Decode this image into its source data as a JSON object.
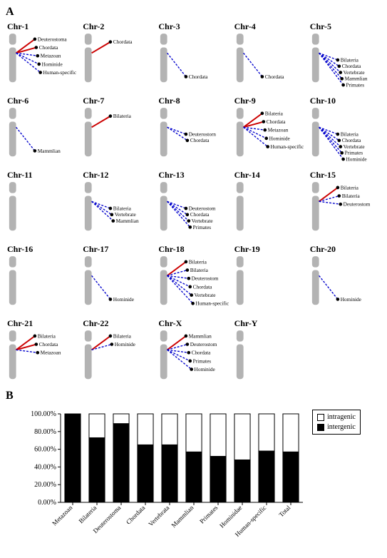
{
  "panelA": {
    "label": "A",
    "chromo_color": "#b3b3b3",
    "solid_color": "#cc0000",
    "dashed_color": "#0000cc",
    "dot_color": "#000000",
    "label_color": "#000000",
    "title_fontsize": 12,
    "label_fontsize": 7.5,
    "chromosomes": [
      {
        "name": "Chr-1",
        "solid": [
          "Deuterostoma",
          "Chordata"
        ],
        "dashed": [
          "Metazoan",
          "Hominide",
          "Human-specific"
        ]
      },
      {
        "name": "Chr-2",
        "solid": [
          "Chordata"
        ],
        "dashed": []
      },
      {
        "name": "Chr-3",
        "solid": [],
        "dashed": [
          "Chordata"
        ]
      },
      {
        "name": "Chr-4",
        "solid": [],
        "dashed": [
          "Chordata"
        ]
      },
      {
        "name": "Chr-5",
        "solid": [],
        "dashed": [
          "Bilateria",
          "Chordata",
          "Vertebrate",
          "Mammlian",
          "Primates"
        ]
      },
      {
        "name": "Chr-6",
        "solid": [],
        "dashed": [
          "Mammlian"
        ]
      },
      {
        "name": "Chr-7",
        "solid": [
          "Bilateria"
        ],
        "dashed": []
      },
      {
        "name": "Chr-8",
        "solid": [],
        "dashed": [
          "Deuterostorn",
          "Chordata"
        ]
      },
      {
        "name": "Chr-9",
        "solid": [
          "Bilateria",
          "Chordata"
        ],
        "dashed": [
          "Metazoan",
          "Hominide",
          "Human-specific"
        ]
      },
      {
        "name": "Chr-10",
        "solid": [],
        "dashed": [
          "Bilateria",
          "Chordata",
          "Vertebrate",
          "Primates",
          "Hominide"
        ]
      },
      {
        "name": "Chr-11",
        "solid": [],
        "dashed": []
      },
      {
        "name": "Chr-12",
        "solid": [],
        "dashed": [
          "Bilateria",
          "Vertebrate",
          "Mammlian"
        ]
      },
      {
        "name": "Chr-13",
        "solid": [],
        "dashed": [
          "Deuterostom",
          "Chordata",
          "Vertebrate",
          "Primates"
        ]
      },
      {
        "name": "Chr-14",
        "solid": [],
        "dashed": []
      },
      {
        "name": "Chr-15",
        "solid": [
          "Bilateria"
        ],
        "dashed": [
          "Bilateria",
          "Deuterostom"
        ]
      },
      {
        "name": "Chr-16",
        "solid": [],
        "dashed": []
      },
      {
        "name": "Chr-17",
        "solid": [],
        "dashed": [
          "Hominide"
        ]
      },
      {
        "name": "Chr-18",
        "solid": [
          "Bilateria"
        ],
        "dashed": [
          "Bilateria",
          "Deuterostom",
          "Chordata",
          "Vertebrate",
          "Human-specific"
        ]
      },
      {
        "name": "Chr-19",
        "solid": [],
        "dashed": []
      },
      {
        "name": "Chr-20",
        "solid": [],
        "dashed": [
          "Hominide"
        ]
      },
      {
        "name": "Chr-21",
        "solid": [
          "Bilateria",
          "Chordata"
        ],
        "dashed": [
          "Metazoan"
        ]
      },
      {
        "name": "Chr-22",
        "solid": [
          "Bilateria"
        ],
        "dashed": [
          "Hominide"
        ]
      },
      {
        "name": "Chr-X",
        "solid": [
          "Mammlian"
        ],
        "dashed": [
          "Deuterostom",
          "Chordata",
          "Primates",
          "Hominide"
        ]
      },
      {
        "name": "Chr-Y",
        "solid": [],
        "dashed": []
      }
    ]
  },
  "panelB": {
    "label": "B",
    "type": "stacked-bar",
    "categories": [
      "Metazoan",
      "Bilateria",
      "Deuterostoma",
      "Chordata",
      "Vertebrata",
      "Mammlian",
      "Primates",
      "Hominidae",
      "Human-specific",
      "Total"
    ],
    "intergenic_pct": [
      100,
      73,
      89,
      65,
      65,
      57,
      52,
      48,
      58,
      57
    ],
    "legend": {
      "intragenic": "intragenic",
      "intergenic": "intergenic"
    },
    "colors": {
      "intragenic": "#ffffff",
      "intergenic": "#000000",
      "border": "#000000",
      "axis": "#000000"
    },
    "ylim": [
      0,
      100
    ],
    "ytick_labels": [
      "0.00%",
      "20.00%",
      "40.00%",
      "60.00%",
      "80.00%",
      "100.00%"
    ],
    "ytick_values": [
      0,
      20,
      40,
      60,
      80,
      100
    ],
    "bar_width": 0.65,
    "label_fontsize": 10,
    "category_fontsize": 9
  }
}
